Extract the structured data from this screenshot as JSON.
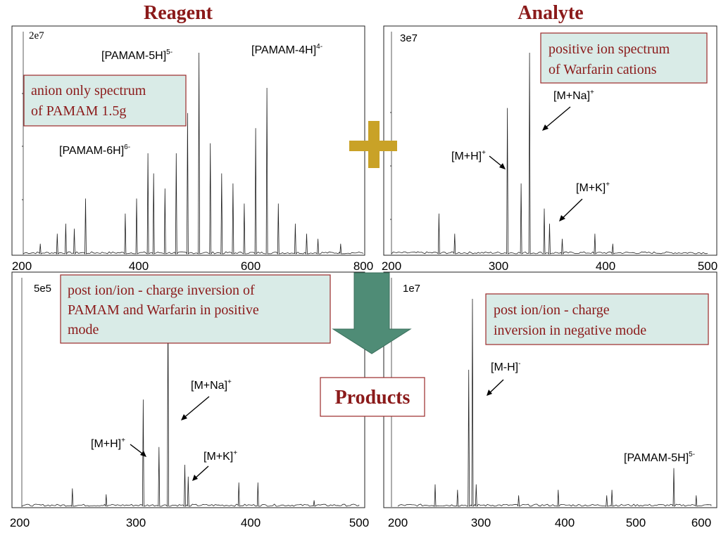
{
  "headings": {
    "reagent": "Reagent",
    "analyte": "Analyte",
    "products": "Products"
  },
  "callouts": {
    "reagent": [
      "anion only spectrum",
      "of  PAMAM 1.5g"
    ],
    "analyte": [
      "positive ion spectrum",
      "of  Warfarin cations"
    ],
    "products_positive": [
      "post ion/ion - charge inversion of",
      "PAMAM and Warfarin in positive",
      "mode"
    ],
    "products_negative": [
      "post ion/ion - charge",
      "inversion in negative mode"
    ]
  },
  "panels": {
    "reagent": {
      "scale": "2e7",
      "x_ticks": [
        "200",
        "400",
        "600",
        "800"
      ],
      "labels": [
        {
          "text": "[PAMAM-5H]",
          "sup": "5-"
        },
        {
          "text": "[PAMAM-4H]",
          "sup": "4-"
        },
        {
          "text": "[PAMAM-6H]",
          "sup": "6-"
        }
      ]
    },
    "analyte": {
      "scale": "3e7",
      "x_ticks": [
        "200",
        "300",
        "400",
        "500"
      ],
      "labels": [
        {
          "text": "[M+Na]",
          "sup": "+"
        },
        {
          "text": "[M+H]",
          "sup": "+"
        },
        {
          "text": "[M+K]",
          "sup": "+"
        }
      ]
    },
    "positive": {
      "scale": "5e5",
      "x_ticks": [
        "200",
        "300",
        "400",
        "500"
      ],
      "labels": [
        {
          "text": "[M+Na]",
          "sup": "+"
        },
        {
          "text": "[M+H]",
          "sup": "+"
        },
        {
          "text": "[M+K]",
          "sup": "+"
        }
      ]
    },
    "negative": {
      "scale": "1e7",
      "x_ticks": [
        "200",
        "300",
        "400",
        "500",
        "600"
      ],
      "labels": [
        {
          "text": "[M-H]",
          "sup": "-"
        },
        {
          "text": "[PAMAM-5H]",
          "sup": "5-"
        }
      ]
    }
  },
  "chart_data": [
    {
      "type": "line",
      "xlim": [
        200,
        800
      ],
      "peaks": [
        [
          230,
          2
        ],
        [
          260,
          4
        ],
        [
          275,
          6
        ],
        [
          290,
          5
        ],
        [
          310,
          11
        ],
        [
          380,
          8
        ],
        [
          400,
          11
        ],
        [
          420,
          20
        ],
        [
          430,
          16
        ],
        [
          450,
          13
        ],
        [
          470,
          20
        ],
        [
          490,
          28
        ],
        [
          510,
          40
        ],
        [
          530,
          22
        ],
        [
          550,
          16
        ],
        [
          570,
          14
        ],
        [
          590,
          10
        ],
        [
          610,
          25
        ],
        [
          630,
          33
        ],
        [
          650,
          10
        ],
        [
          680,
          6
        ],
        [
          700,
          4
        ],
        [
          720,
          3
        ],
        [
          760,
          2
        ]
      ]
    },
    {
      "type": "line",
      "xlim": [
        200,
        500
      ],
      "peaks": [
        [
          245,
          8
        ],
        [
          260,
          4
        ],
        [
          310,
          29
        ],
        [
          323,
          14
        ],
        [
          331,
          40
        ],
        [
          345,
          9
        ],
        [
          350,
          6
        ],
        [
          362,
          3
        ],
        [
          393,
          4
        ],
        [
          410,
          2
        ]
      ]
    },
    {
      "type": "line",
      "xlim": [
        200,
        500
      ],
      "peaks": [
        [
          245,
          3
        ],
        [
          275,
          2
        ],
        [
          308,
          18
        ],
        [
          322,
          10
        ],
        [
          330,
          35
        ],
        [
          345,
          7
        ],
        [
          348,
          5
        ],
        [
          393,
          4
        ],
        [
          410,
          4
        ],
        [
          460,
          1
        ]
      ]
    },
    {
      "type": "line",
      "xlim": [
        200,
        620
      ],
      "peaks": [
        [
          250,
          4
        ],
        [
          280,
          3
        ],
        [
          295,
          25
        ],
        [
          300,
          38
        ],
        [
          305,
          4
        ],
        [
          362,
          2
        ],
        [
          415,
          3
        ],
        [
          480,
          2
        ],
        [
          487,
          3
        ],
        [
          570,
          7
        ],
        [
          600,
          2
        ]
      ]
    }
  ]
}
